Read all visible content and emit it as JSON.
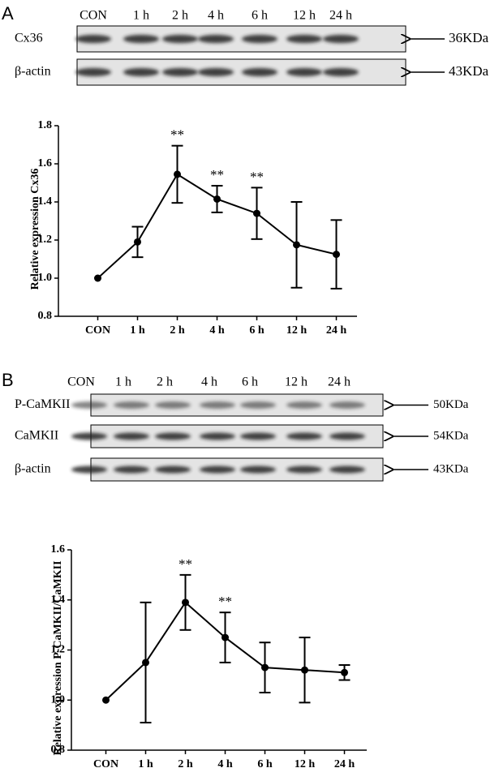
{
  "panels": [
    {
      "label": "A",
      "lanes": [
        "CON",
        "1 h",
        "2 h",
        "4 h",
        "6 h",
        "12 h",
        "24 h"
      ],
      "blots": [
        {
          "name": "Cx36",
          "size": "36KDa"
        },
        {
          "name": "β-actin",
          "size": "43KDa"
        }
      ]
    },
    {
      "label": "B",
      "lanes": [
        "CON",
        "1 h",
        "2 h",
        "4 h",
        "6 h",
        "12 h",
        "24 h"
      ],
      "blots": [
        {
          "name": "P-CaMKII",
          "size": "50KDa"
        },
        {
          "name": "CaMKII",
          "size": "54KDa"
        },
        {
          "name": "β-actin",
          "size": "43KDa"
        }
      ]
    }
  ],
  "chart_data": [
    {
      "type": "line",
      "y_label": "Relative expression Cx36",
      "categories": [
        "CON",
        "1 h",
        "2 h",
        "4 h",
        "6 h",
        "12 h",
        "24 h"
      ],
      "values": [
        1.0,
        1.19,
        1.545,
        1.415,
        1.34,
        1.175,
        1.125
      ],
      "errors": [
        0,
        0.08,
        0.15,
        0.07,
        0.135,
        0.225,
        0.18
      ],
      "value_annotations": [
        null,
        null,
        "**",
        "**",
        "**",
        null,
        null
      ],
      "color": "#000000",
      "ylim": [
        0.8,
        1.8
      ],
      "yticks": [
        0.8,
        {
          "value": 1,
          "label": "1.0"
        },
        1.2,
        1.4,
        1.6,
        1.8
      ]
    },
    {
      "type": "line",
      "y_label": "Relative expression P-CaMKII/CaMKII",
      "categories": [
        "CON",
        "1 h",
        "2 h",
        "4 h",
        "6 h",
        "12 h",
        "24 h"
      ],
      "values": [
        1.0,
        1.15,
        1.39,
        1.25,
        1.13,
        1.12,
        1.11
      ],
      "errors": [
        0,
        0.24,
        0.11,
        0.1,
        0.1,
        0.13,
        0.03
      ],
      "value_annotations": [
        null,
        null,
        "**",
        "**",
        null,
        null,
        null
      ],
      "color": "#000000",
      "ylim": [
        0.8,
        1.6
      ],
      "yticks": [
        0.8,
        {
          "value": 1,
          "label": "1.0"
        },
        1.2,
        1.4,
        1.6
      ]
    }
  ]
}
